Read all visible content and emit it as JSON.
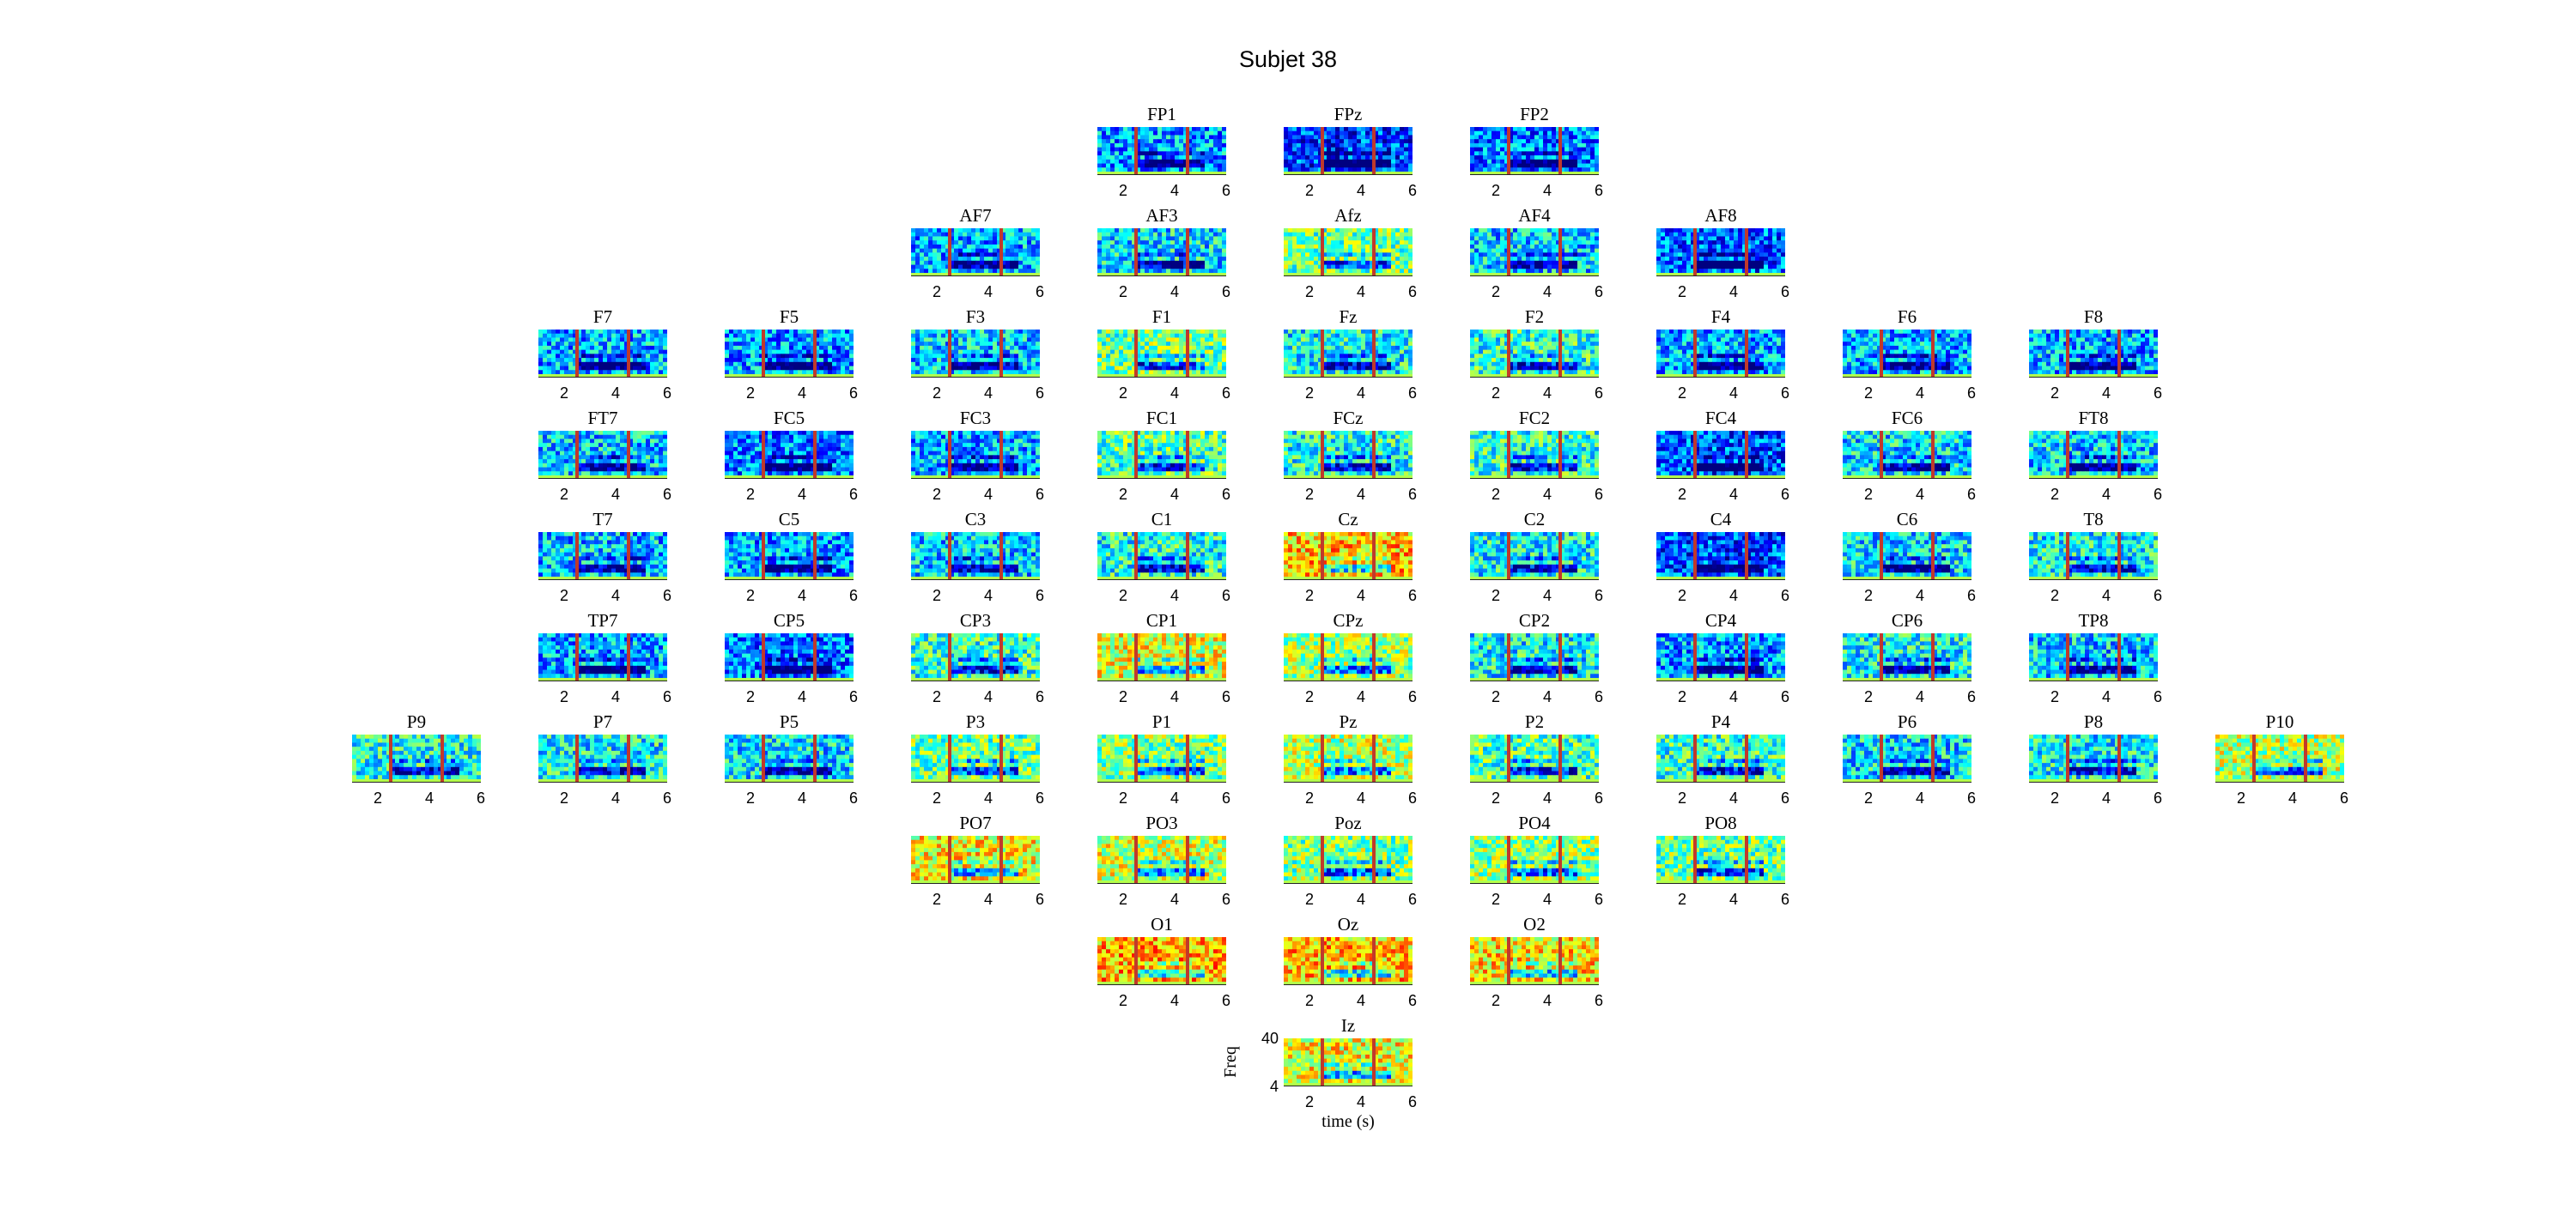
{
  "figure": {
    "title": "Subjet 38"
  },
  "chart_data": {
    "type": "heatmap",
    "title": "Subjet 38",
    "xlabel": "time (s)",
    "ylabel": "Freq",
    "xticks": [
      "2",
      "4",
      "6"
    ],
    "yticks": [
      "40",
      "4"
    ],
    "xlim": [
      1,
      6
    ],
    "ylim": [
      4,
      40
    ],
    "event_lines_s": [
      2.5,
      4.5
    ],
    "colors": {
      "low": "#0000c8",
      "mid": "#40f0d0",
      "high": "#ffff00",
      "max": "#c00000",
      "event_line": "#c0392b"
    },
    "channels": [
      {
        "name": "FP1",
        "row": 0,
        "col": 4,
        "power": 0.28
      },
      {
        "name": "FPz",
        "row": 0,
        "col": 5,
        "power": 0.18
      },
      {
        "name": "FP2",
        "row": 0,
        "col": 6,
        "power": 0.25
      },
      {
        "name": "AF7",
        "row": 1,
        "col": 3,
        "power": 0.3
      },
      {
        "name": "AF3",
        "row": 1,
        "col": 4,
        "power": 0.35
      },
      {
        "name": "Afz",
        "row": 1,
        "col": 5,
        "power": 0.48
      },
      {
        "name": "AF4",
        "row": 1,
        "col": 6,
        "power": 0.33
      },
      {
        "name": "AF8",
        "row": 1,
        "col": 7,
        "power": 0.22
      },
      {
        "name": "F7",
        "row": 2,
        "col": 1,
        "power": 0.3
      },
      {
        "name": "F5",
        "row": 2,
        "col": 2,
        "power": 0.28
      },
      {
        "name": "F3",
        "row": 2,
        "col": 3,
        "power": 0.33
      },
      {
        "name": "F1",
        "row": 2,
        "col": 4,
        "power": 0.48
      },
      {
        "name": "Fz",
        "row": 2,
        "col": 5,
        "power": 0.38
      },
      {
        "name": "F2",
        "row": 2,
        "col": 6,
        "power": 0.42
      },
      {
        "name": "F4",
        "row": 2,
        "col": 7,
        "power": 0.3
      },
      {
        "name": "F6",
        "row": 2,
        "col": 8,
        "power": 0.3
      },
      {
        "name": "F8",
        "row": 2,
        "col": 9,
        "power": 0.3
      },
      {
        "name": "FT7",
        "row": 3,
        "col": 1,
        "power": 0.33
      },
      {
        "name": "FC5",
        "row": 3,
        "col": 2,
        "power": 0.25
      },
      {
        "name": "FC3",
        "row": 3,
        "col": 3,
        "power": 0.3
      },
      {
        "name": "FC1",
        "row": 3,
        "col": 4,
        "power": 0.45
      },
      {
        "name": "FCz",
        "row": 3,
        "col": 5,
        "power": 0.4
      },
      {
        "name": "FC2",
        "row": 3,
        "col": 6,
        "power": 0.42
      },
      {
        "name": "FC4",
        "row": 3,
        "col": 7,
        "power": 0.2
      },
      {
        "name": "FC6",
        "row": 3,
        "col": 8,
        "power": 0.35
      },
      {
        "name": "FT8",
        "row": 3,
        "col": 9,
        "power": 0.33
      },
      {
        "name": "T7",
        "row": 4,
        "col": 1,
        "power": 0.32
      },
      {
        "name": "C5",
        "row": 4,
        "col": 2,
        "power": 0.28
      },
      {
        "name": "C3",
        "row": 4,
        "col": 3,
        "power": 0.33
      },
      {
        "name": "C1",
        "row": 4,
        "col": 4,
        "power": 0.4
      },
      {
        "name": "Cz",
        "row": 4,
        "col": 5,
        "power": 0.68
      },
      {
        "name": "C2",
        "row": 4,
        "col": 6,
        "power": 0.38
      },
      {
        "name": "C4",
        "row": 4,
        "col": 7,
        "power": 0.2
      },
      {
        "name": "C6",
        "row": 4,
        "col": 8,
        "power": 0.35
      },
      {
        "name": "T8",
        "row": 4,
        "col": 9,
        "power": 0.38
      },
      {
        "name": "TP7",
        "row": 5,
        "col": 1,
        "power": 0.3
      },
      {
        "name": "CP5",
        "row": 5,
        "col": 2,
        "power": 0.25
      },
      {
        "name": "CP3",
        "row": 5,
        "col": 3,
        "power": 0.42
      },
      {
        "name": "CP1",
        "row": 5,
        "col": 4,
        "power": 0.6
      },
      {
        "name": "CPz",
        "row": 5,
        "col": 5,
        "power": 0.52
      },
      {
        "name": "CP2",
        "row": 5,
        "col": 6,
        "power": 0.38
      },
      {
        "name": "CP4",
        "row": 5,
        "col": 7,
        "power": 0.28
      },
      {
        "name": "CP6",
        "row": 5,
        "col": 8,
        "power": 0.38
      },
      {
        "name": "TP8",
        "row": 5,
        "col": 9,
        "power": 0.33
      },
      {
        "name": "P9",
        "row": 6,
        "col": 0,
        "power": 0.4
      },
      {
        "name": "P7",
        "row": 6,
        "col": 1,
        "power": 0.38
      },
      {
        "name": "P5",
        "row": 6,
        "col": 2,
        "power": 0.35
      },
      {
        "name": "P3",
        "row": 6,
        "col": 3,
        "power": 0.48
      },
      {
        "name": "P1",
        "row": 6,
        "col": 4,
        "power": 0.5
      },
      {
        "name": "Pz",
        "row": 6,
        "col": 5,
        "power": 0.55
      },
      {
        "name": "P2",
        "row": 6,
        "col": 6,
        "power": 0.45
      },
      {
        "name": "P4",
        "row": 6,
        "col": 7,
        "power": 0.42
      },
      {
        "name": "P6",
        "row": 6,
        "col": 8,
        "power": 0.35
      },
      {
        "name": "P8",
        "row": 6,
        "col": 9,
        "power": 0.38
      },
      {
        "name": "P10",
        "row": 6,
        "col": 10,
        "power": 0.55
      },
      {
        "name": "PO7",
        "row": 7,
        "col": 3,
        "power": 0.62
      },
      {
        "name": "PO3",
        "row": 7,
        "col": 4,
        "power": 0.58
      },
      {
        "name": "Poz",
        "row": 7,
        "col": 5,
        "power": 0.5
      },
      {
        "name": "PO4",
        "row": 7,
        "col": 6,
        "power": 0.52
      },
      {
        "name": "PO8",
        "row": 7,
        "col": 7,
        "power": 0.48
      },
      {
        "name": "O1",
        "row": 8,
        "col": 4,
        "power": 0.7
      },
      {
        "name": "Oz",
        "row": 8,
        "col": 5,
        "power": 0.68
      },
      {
        "name": "O2",
        "row": 8,
        "col": 6,
        "power": 0.65
      },
      {
        "name": "Iz",
        "row": 9,
        "col": 5,
        "power": 0.62
      }
    ]
  }
}
